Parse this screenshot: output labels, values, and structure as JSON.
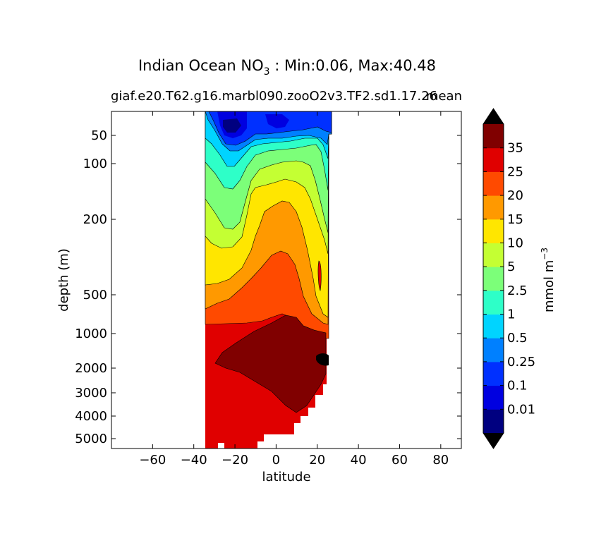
{
  "chart_data": {
    "type": "contour",
    "title_prefix": "Indian Ocean NO",
    "title_sub": "3",
    "title_suffix": " : Min:0.06, Max:40.48",
    "subtitle": "giaf.e20.T62.g16.marbl090.zooO2v3.TF2.sd1.17.26",
    "subtitle_right": "mean",
    "xlabel": "latitude",
    "ylabel": "depth (m)",
    "xlim": [
      -80,
      90
    ],
    "ylim": [
      30,
      5500
    ],
    "y_scale": "stretched (nonlinear depth axis)",
    "x_ticks": [
      {
        "value": -60,
        "label": "−60"
      },
      {
        "value": -40,
        "label": "−40"
      },
      {
        "value": -20,
        "label": "−20"
      },
      {
        "value": 0,
        "label": "0"
      },
      {
        "value": 20,
        "label": "20"
      },
      {
        "value": 40,
        "label": "40"
      },
      {
        "value": 60,
        "label": "60"
      },
      {
        "value": 80,
        "label": "80"
      }
    ],
    "y_ticks": [
      {
        "value": 50,
        "label": "50"
      },
      {
        "value": 100,
        "label": "100"
      },
      {
        "value": 200,
        "label": "200"
      },
      {
        "value": 500,
        "label": "500"
      },
      {
        "value": 1000,
        "label": "1000"
      },
      {
        "value": 2000,
        "label": "2000"
      },
      {
        "value": 3000,
        "label": "3000"
      },
      {
        "value": 4000,
        "label": "4000"
      },
      {
        "value": 5000,
        "label": "5000"
      }
    ],
    "colorbar": {
      "label": "mmol m",
      "label_sup": "−3",
      "extend": "both",
      "tick_labels": [
        "0.01",
        "0.1",
        "0.25",
        "0.5",
        "1",
        "2.5",
        "5",
        "10",
        "15",
        "20",
        "25",
        "35"
      ],
      "colors": [
        "#000080",
        "#0000e0",
        "#0030ff",
        "#0080ff",
        "#00d4ff",
        "#2effc8",
        "#7cff79",
        "#c4ff33",
        "#ffe600",
        "#ff9900",
        "#ff4a00",
        "#e00000",
        "#800000"
      ],
      "extend_color": "#000000"
    }
  }
}
